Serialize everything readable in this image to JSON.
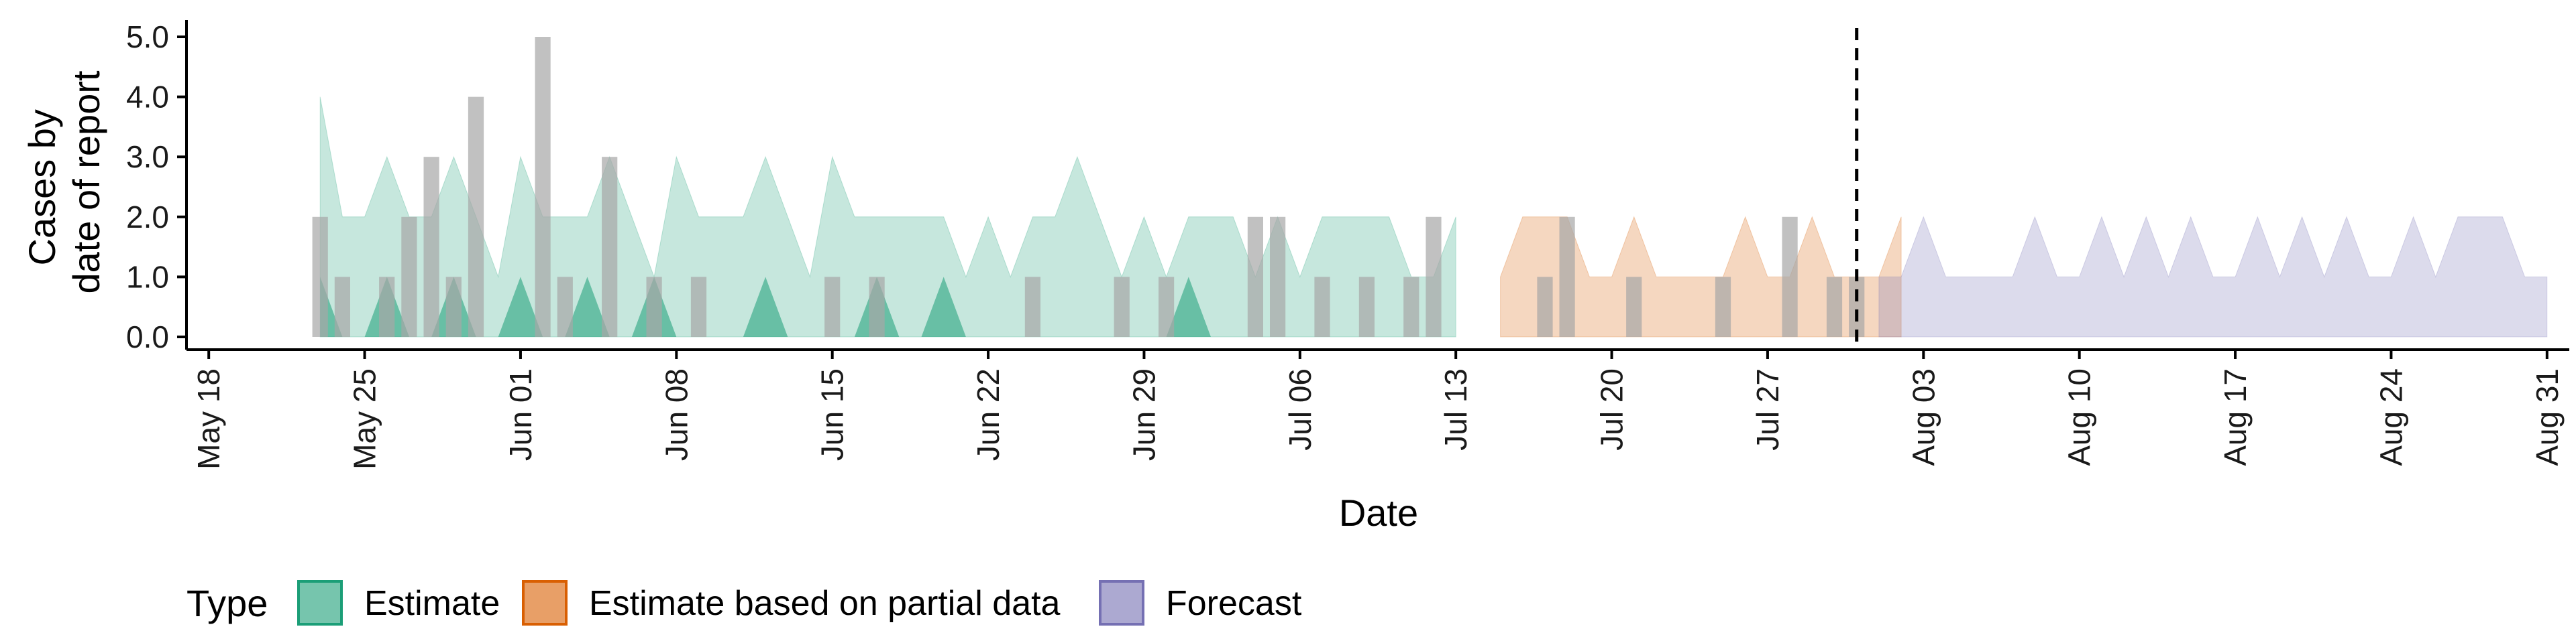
{
  "chart_data": {
    "type": "area",
    "xlabel": "Date",
    "ylabel": [
      "Cases by",
      "date of report"
    ],
    "ylim": [
      0,
      5
    ],
    "y_ticks": [
      "0.0",
      "1.0",
      "2.0",
      "3.0",
      "4.0",
      "5.0"
    ],
    "x_range": [
      "2020-05-17",
      "2020-09-01"
    ],
    "x_ticks": [
      {
        "date": "2020-05-18",
        "label": "May 18"
      },
      {
        "date": "2020-05-25",
        "label": "May 25"
      },
      {
        "date": "2020-06-01",
        "label": "Jun 01"
      },
      {
        "date": "2020-06-08",
        "label": "Jun 08"
      },
      {
        "date": "2020-06-15",
        "label": "Jun 15"
      },
      {
        "date": "2020-06-22",
        "label": "Jun 22"
      },
      {
        "date": "2020-06-29",
        "label": "Jun 29"
      },
      {
        "date": "2020-07-06",
        "label": "Jul 06"
      },
      {
        "date": "2020-07-13",
        "label": "Jul 13"
      },
      {
        "date": "2020-07-20",
        "label": "Jul 20"
      },
      {
        "date": "2020-07-27",
        "label": "Jul 27"
      },
      {
        "date": "2020-08-03",
        "label": "Aug 03"
      },
      {
        "date": "2020-08-10",
        "label": "Aug 10"
      },
      {
        "date": "2020-08-17",
        "label": "Aug 17"
      },
      {
        "date": "2020-08-24",
        "label": "Aug 24"
      },
      {
        "date": "2020-08-31",
        "label": "Aug 31"
      }
    ],
    "vline_date": "2020-07-31",
    "grid": false,
    "legend_position": "bottom-left",
    "legend": {
      "title": "Type",
      "items": [
        {
          "label": "Estimate",
          "fill": "#1b9e77",
          "border": "#1b9e77"
        },
        {
          "label": "Estimate based on partial data",
          "fill": "#d95f02",
          "border": "#d95f02"
        },
        {
          "label": "Forecast",
          "fill": "#7570b3",
          "border": "#7570b3"
        }
      ]
    },
    "series": [
      {
        "type_label": "Estimate",
        "color": "#1b9e77",
        "start": "2020-05-23",
        "outer_upper": [
          4,
          2,
          2,
          3,
          2,
          2,
          3,
          2,
          1,
          3,
          2,
          2,
          2,
          3,
          2,
          1,
          3,
          2,
          2,
          2,
          3,
          2,
          1,
          3,
          2,
          2,
          2,
          2,
          2,
          1,
          2,
          1,
          2,
          2,
          3,
          2,
          1,
          2,
          1,
          2,
          2,
          2,
          1,
          2,
          1,
          2,
          2,
          2,
          2,
          1,
          1,
          2
        ],
        "outer_lower": [
          0,
          0,
          0,
          0,
          0,
          0,
          0,
          0,
          0,
          0,
          0,
          0,
          0,
          0,
          0,
          0,
          0,
          0,
          0,
          0,
          0,
          0,
          0,
          0,
          0,
          0,
          0,
          0,
          0,
          0,
          0,
          0,
          0,
          0,
          0,
          0,
          0,
          0,
          0,
          0,
          0,
          0,
          0,
          0,
          0,
          0,
          0,
          0,
          0,
          0,
          0,
          0
        ],
        "inner_upper": [
          1,
          0,
          0,
          1,
          0,
          0,
          1,
          0,
          0,
          1,
          0,
          0,
          1,
          0,
          0,
          1,
          0,
          0,
          0,
          0,
          1,
          0,
          0,
          0,
          0,
          1,
          0,
          0,
          1,
          0,
          0,
          0,
          0,
          0,
          0,
          0,
          0,
          0,
          0,
          1,
          0,
          0,
          0,
          0,
          0,
          0,
          0,
          0,
          0,
          0,
          0,
          0
        ]
      },
      {
        "type_label": "Estimate based on partial data",
        "color": "#d95f02",
        "start": "2020-07-15",
        "outer_upper": [
          1,
          2,
          2,
          2,
          1,
          1,
          2,
          1,
          1,
          1,
          1,
          2,
          1,
          1,
          2,
          1,
          1,
          1,
          2
        ],
        "outer_lower": [
          0,
          0,
          0,
          0,
          0,
          0,
          0,
          0,
          0,
          0,
          0,
          0,
          0,
          0,
          0,
          0,
          0,
          0,
          0
        ],
        "inner_upper": [
          0,
          0,
          0,
          0,
          0,
          0,
          0,
          0,
          0,
          0,
          0,
          0,
          0,
          0,
          0,
          0,
          0,
          0,
          0
        ]
      },
      {
        "type_label": "Forecast",
        "color": "#7570b3",
        "start": "2020-08-01",
        "outer_upper": [
          1,
          1,
          2,
          1,
          1,
          1,
          1,
          2,
          1,
          1,
          2,
          1,
          2,
          1,
          2,
          1,
          1,
          2,
          1,
          2,
          1,
          2,
          1,
          1,
          2,
          1,
          2,
          2,
          2,
          1,
          1
        ],
        "outer_lower": [
          0,
          0,
          0,
          0,
          0,
          0,
          0,
          0,
          0,
          0,
          0,
          0,
          0,
          0,
          0,
          0,
          0,
          0,
          0,
          0,
          0,
          0,
          0,
          0,
          0,
          0,
          0,
          0,
          0,
          0,
          0
        ],
        "inner_upper": [
          0,
          0,
          0,
          0,
          0,
          0,
          0,
          0,
          0,
          0,
          0,
          0,
          0,
          0,
          0,
          0,
          0,
          0,
          0,
          0,
          0,
          0,
          0,
          0,
          0,
          0,
          0,
          0,
          0,
          0,
          0
        ]
      }
    ],
    "reported_cases": {
      "color": "#a6a6a6",
      "points": [
        {
          "date": "2020-05-23",
          "value": 2
        },
        {
          "date": "2020-05-24",
          "value": 1
        },
        {
          "date": "2020-05-26",
          "value": 1
        },
        {
          "date": "2020-05-27",
          "value": 2
        },
        {
          "date": "2020-05-28",
          "value": 3
        },
        {
          "date": "2020-05-29",
          "value": 1
        },
        {
          "date": "2020-05-30",
          "value": 4
        },
        {
          "date": "2020-06-02",
          "value": 5
        },
        {
          "date": "2020-06-03",
          "value": 1
        },
        {
          "date": "2020-06-05",
          "value": 3
        },
        {
          "date": "2020-06-07",
          "value": 1
        },
        {
          "date": "2020-06-09",
          "value": 1
        },
        {
          "date": "2020-06-15",
          "value": 1
        },
        {
          "date": "2020-06-17",
          "value": 1
        },
        {
          "date": "2020-06-24",
          "value": 1
        },
        {
          "date": "2020-06-28",
          "value": 1
        },
        {
          "date": "2020-06-30",
          "value": 1
        },
        {
          "date": "2020-07-04",
          "value": 2
        },
        {
          "date": "2020-07-05",
          "value": 2
        },
        {
          "date": "2020-07-07",
          "value": 1
        },
        {
          "date": "2020-07-09",
          "value": 1
        },
        {
          "date": "2020-07-11",
          "value": 1
        },
        {
          "date": "2020-07-12",
          "value": 2
        },
        {
          "date": "2020-07-17",
          "value": 1
        },
        {
          "date": "2020-07-18",
          "value": 2
        },
        {
          "date": "2020-07-21",
          "value": 1
        },
        {
          "date": "2020-07-25",
          "value": 1
        },
        {
          "date": "2020-07-28",
          "value": 2
        },
        {
          "date": "2020-07-30",
          "value": 1
        },
        {
          "date": "2020-07-31",
          "value": 1
        }
      ]
    }
  }
}
